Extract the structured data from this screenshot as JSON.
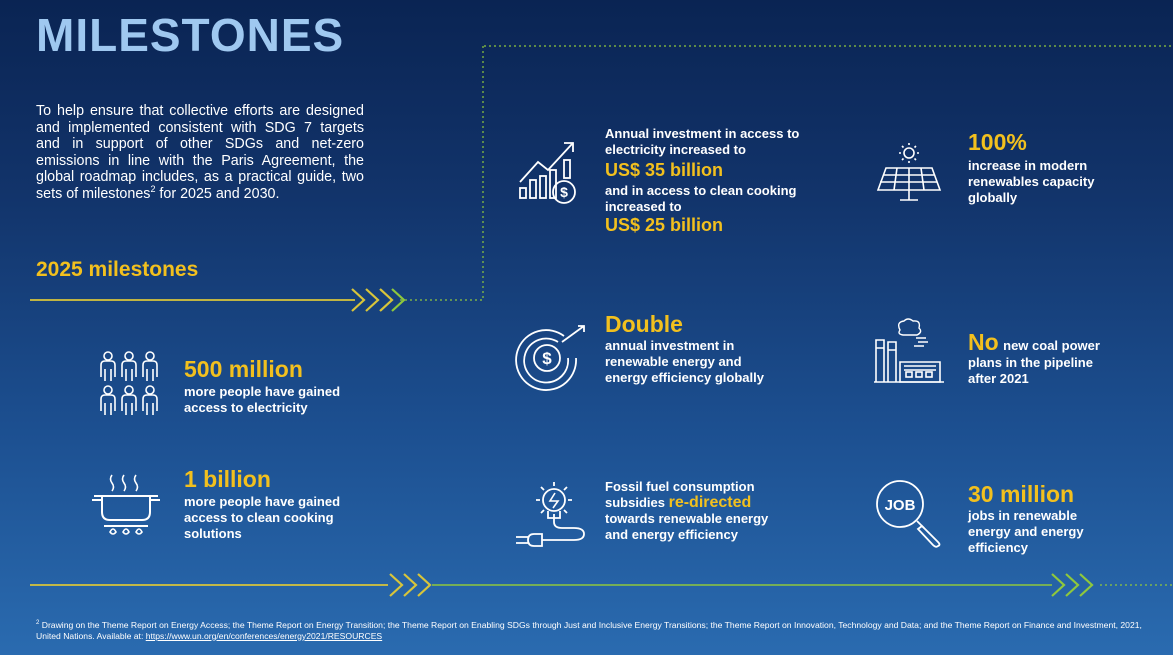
{
  "title": "MILESTONES",
  "intro": {
    "text": "To help ensure that collective efforts are designed and implemented consistent with SDG 7 targets and in support of other SDGs and net-zero emissions in line with the Paris Agreement, the global roadmap includes, as a practical guide, two sets of milestones",
    "sup": "2",
    "text_end": " for 2025 and 2030."
  },
  "section_heading": "2025 milestones",
  "milestones": {
    "electricity_access": {
      "value": "500 million",
      "desc": "more people have gained access to electricity",
      "icon": "people-group-icon"
    },
    "clean_cooking": {
      "value": "1 billion",
      "desc": "more people have gained access to clean cooking solutions",
      "icon": "cooking-pot-icon"
    },
    "investment": {
      "line1": "Annual investment in access to electricity increased to",
      "value1": "US$ 35 billion",
      "line2": "and in access to clean cooking increased to",
      "value2": "US$ 25 billion",
      "icon": "investment-growth-icon"
    },
    "double": {
      "value": "Double",
      "desc": "annual investment in renewable energy and energy efficiency globally",
      "icon": "dollar-target-icon"
    },
    "fossil_subsidies": {
      "pre": "Fossil fuel consumption subsidies",
      "highlight": "re-directed",
      "post": "towards renewable energy and energy efficiency",
      "icon": "bulb-plug-icon"
    },
    "renewables": {
      "value": "100%",
      "desc": "increase in modern renewables capacity globally",
      "icon": "solar-panel-icon"
    },
    "coal": {
      "value": "No",
      "desc_inline": "new coal power",
      "desc": "plans in the pipeline after 2021",
      "icon": "factory-icon"
    },
    "jobs": {
      "value": "30 million",
      "desc": "jobs in renewable energy and energy efficiency",
      "icon": "job-search-icon",
      "icon_text": "JOB"
    }
  },
  "footnote": {
    "sup": "2",
    "text": "Drawing on the Theme Report on Energy Access; the Theme Report on Energy Transition; the Theme Report on Enabling SDGs through Just and Inclusive Energy Transitions; the Theme Report on Innovation, Technology and Data; and the Theme Report on Finance and Investment, 2021, United Nations. Available at: ",
    "link": "https://www.un.org/en/conferences/energy2021/RESOURCES"
  },
  "colors": {
    "accent": "#f2c01e",
    "title": "#9fc8f0",
    "line_green": "#8fc83c",
    "line_yellow": "#d8c53a"
  }
}
